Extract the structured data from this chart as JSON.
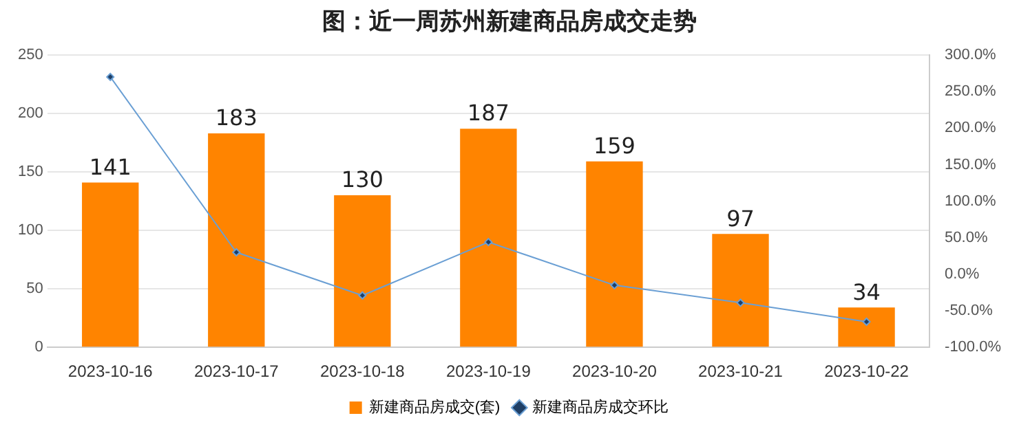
{
  "chart_data": {
    "type": "bar",
    "title": "图：近一周苏州新建商品房成交走势",
    "categories": [
      "2023-10-16",
      "2023-10-17",
      "2023-10-18",
      "2023-10-19",
      "2023-10-20",
      "2023-10-21",
      "2023-10-22"
    ],
    "series": [
      {
        "name": "新建商品房成交(套)",
        "color": "#ff8400",
        "values": [
          141,
          183,
          130,
          187,
          159,
          97,
          34
        ],
        "data_labels": true
      },
      {
        "name": "新建商品房成交环比",
        "type": "line",
        "axis": "y2",
        "color": "#6a9fd4",
        "marker": "diamond",
        "values": [
          270,
          30,
          -29,
          44,
          -15,
          -39,
          -65
        ]
      }
    ],
    "ylim": [
      0,
      250
    ],
    "yticks": [
      0,
      50,
      100,
      150,
      200,
      250
    ],
    "y2lim": [
      -100,
      300
    ],
    "y2ticks": [
      {
        "value": -100,
        "label": "-100.0%"
      },
      {
        "value": -50,
        "label": "-50.0%"
      },
      {
        "value": 0,
        "label": "0.0%"
      },
      {
        "value": 50,
        "label": "50.0%"
      },
      {
        "value": 100,
        "label": "100.0%"
      },
      {
        "value": 150,
        "label": "150.0%"
      },
      {
        "value": 200,
        "label": "200.0%"
      },
      {
        "value": 250,
        "label": "250.0%"
      },
      {
        "value": 300,
        "label": "300.0%"
      }
    ],
    "grid": "y",
    "legend": "bottom"
  }
}
